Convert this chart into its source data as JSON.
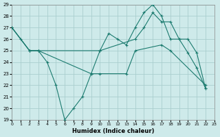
{
  "xlabel": "Humidex (Indice chaleur)",
  "xlim": [
    0,
    23
  ],
  "ylim": [
    19,
    29
  ],
  "yticks": [
    19,
    20,
    21,
    22,
    23,
    24,
    25,
    26,
    27,
    28,
    29
  ],
  "xticks": [
    0,
    1,
    2,
    3,
    4,
    5,
    6,
    7,
    8,
    9,
    10,
    11,
    12,
    13,
    14,
    15,
    16,
    17,
    18,
    19,
    20,
    21,
    22,
    23
  ],
  "bg_color": "#ceeaea",
  "grid_color": "#aacece",
  "line_color": "#1a7a6e",
  "series": [
    {
      "x": [
        0,
        1,
        2,
        3,
        4,
        5,
        6,
        7,
        8,
        9,
        10,
        11,
        12,
        13,
        14,
        15,
        16,
        17,
        18,
        19,
        20,
        21,
        22
      ],
      "y": [
        27,
        26,
        25,
        25,
        24,
        22,
        19,
        20,
        21,
        23,
        25,
        26.5,
        26,
        25.5,
        27,
        28.3,
        29,
        28,
        26,
        26,
        24.8,
        23.5,
        21.7
      ]
    },
    {
      "x": [
        0,
        2,
        3,
        10,
        14,
        15,
        16,
        17,
        18,
        19,
        20,
        21,
        22
      ],
      "y": [
        27,
        25,
        25,
        25,
        26,
        27,
        28.3,
        27.5,
        27.5,
        26,
        26,
        24.8,
        21.7
      ]
    },
    {
      "x": [
        0,
        2,
        3,
        9,
        10,
        13,
        14,
        17,
        18,
        22
      ],
      "y": [
        27,
        25,
        25,
        23,
        23,
        23,
        25,
        25.5,
        25,
        22
      ]
    }
  ]
}
